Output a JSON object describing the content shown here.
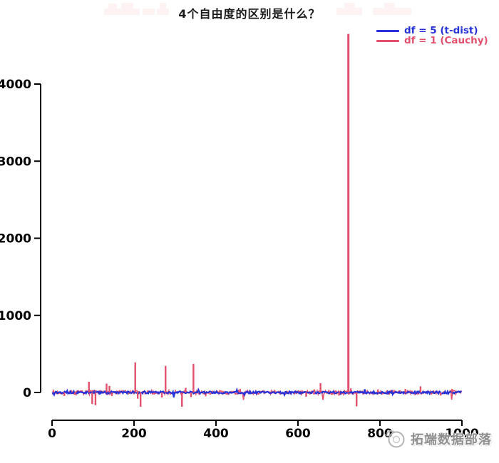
{
  "title": "4个自由度的区别是什么？",
  "legend": {
    "position": "top-right",
    "entries": [
      {
        "label": "df = 5 (t-dist)",
        "color": "#2633d8"
      },
      {
        "label": "df = 1 (Cauchy)",
        "color": "#e2506e"
      }
    ]
  },
  "watermark": {
    "text": "拓端数据部落",
    "logo": "snail-circle-logo-icon",
    "color": "#8f8f8f"
  },
  "axes": {
    "color": "#000000",
    "tick_label_color": "#000000",
    "tick_label_bold": true
  },
  "chart_data": {
    "type": "line",
    "title": "4个自由度的区别是什么？",
    "xlabel": "",
    "ylabel": "",
    "xlim": [
      0,
      1000
    ],
    "ylim": [
      -230,
      4660
    ],
    "x_ticks": [
      0,
      200,
      400,
      600,
      800,
      1000
    ],
    "y_ticks": [
      0,
      1000,
      2000,
      3000,
      4000
    ],
    "grid": false,
    "legend_position": "top-right",
    "n_points": 1000,
    "series": [
      {
        "name": "df = 5 (t-dist)",
        "color": "#2633d8",
        "kind": "noise-line",
        "baseline": 0,
        "noise_amplitude": 15,
        "rare_bump_probability": 0.02,
        "description": "Student t with 5 df: stays as a flat noisy band around 0 for all 1000 samples"
      },
      {
        "name": "df = 1 (Cauchy)",
        "color": "#e2506e",
        "kind": "noise-line-with-spikes",
        "baseline": 0,
        "noise_amplitude": 25,
        "rare_bump_probability": 0.03,
        "description": "Cauchy (t with 1 df): noise around 0 plus extreme outlier spikes",
        "spikes": [
          {
            "x": 30,
            "v": -45
          },
          {
            "x": 56,
            "v": -30
          },
          {
            "x": 90,
            "v": 140
          },
          {
            "x": 98,
            "v": -150
          },
          {
            "x": 106,
            "v": -165
          },
          {
            "x": 133,
            "v": 115
          },
          {
            "x": 140,
            "v": 85
          },
          {
            "x": 146,
            "v": -45
          },
          {
            "x": 203,
            "v": 390
          },
          {
            "x": 209,
            "v": -80
          },
          {
            "x": 216,
            "v": -185
          },
          {
            "x": 268,
            "v": -65
          },
          {
            "x": 277,
            "v": 345
          },
          {
            "x": 317,
            "v": -185
          },
          {
            "x": 326,
            "v": 60
          },
          {
            "x": 339,
            "v": -60
          },
          {
            "x": 345,
            "v": 370
          },
          {
            "x": 620,
            "v": -55
          },
          {
            "x": 640,
            "v": 40
          },
          {
            "x": 655,
            "v": 120
          },
          {
            "x": 700,
            "v": -40
          },
          {
            "x": 723,
            "v": 4650
          },
          {
            "x": 743,
            "v": -180
          },
          {
            "x": 795,
            "v": 40
          },
          {
            "x": 862,
            "v": 45
          },
          {
            "x": 899,
            "v": 80
          },
          {
            "x": 948,
            "v": -40
          },
          {
            "x": 976,
            "v": 45
          }
        ],
        "max_spike": {
          "x": 723,
          "value": 4650
        }
      }
    ]
  }
}
